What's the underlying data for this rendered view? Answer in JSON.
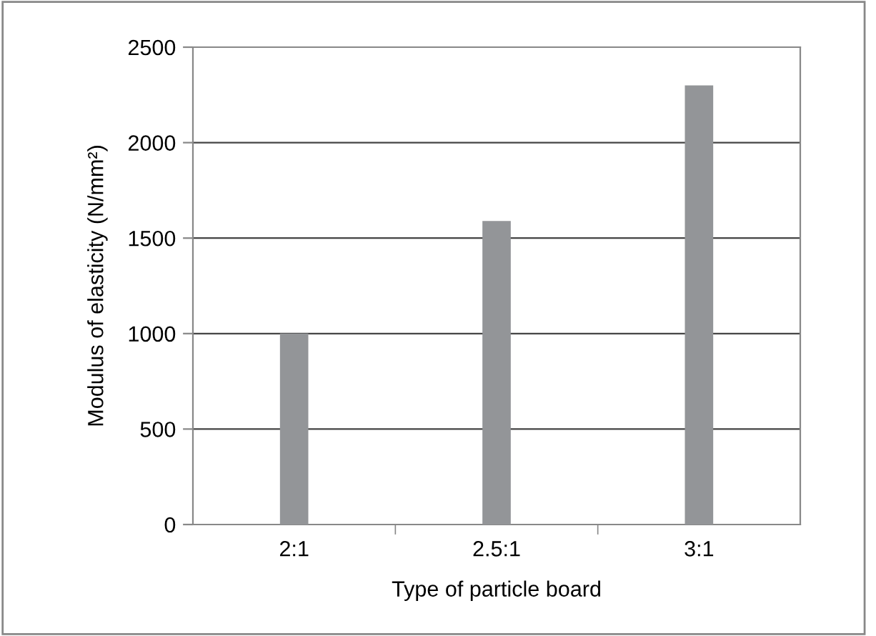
{
  "chart_data": {
    "type": "bar",
    "xlabel": "Type of particle board",
    "ylabel": "Modulus of elasticity (N/mm²)",
    "categories": [
      "2:1",
      "2.5:1",
      "3:1"
    ],
    "values": [
      1000,
      1590,
      2300
    ],
    "color": "#939598",
    "ylim": [
      0,
      2500
    ],
    "yticks": [
      0,
      500,
      1000,
      1500,
      2000,
      2500
    ],
    "grid": "y"
  }
}
